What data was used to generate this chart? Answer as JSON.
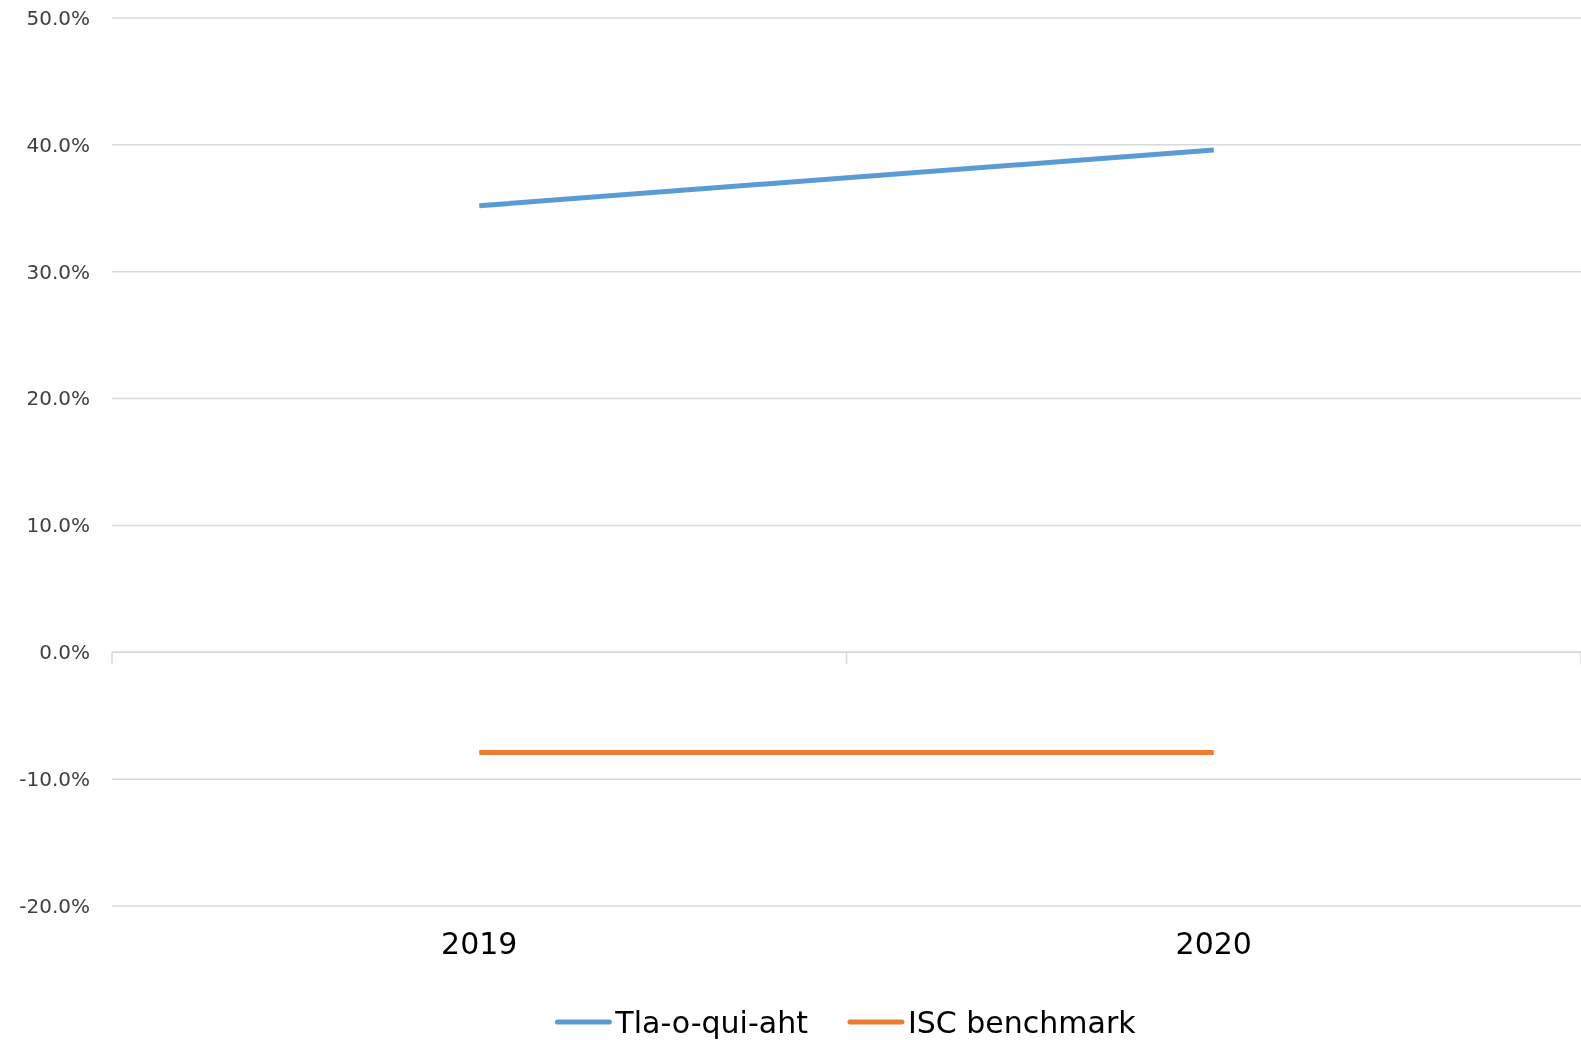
{
  "chart_data": {
    "type": "line",
    "categories": [
      "2019",
      "2020"
    ],
    "series": [
      {
        "name": "Tla-o-qui-aht",
        "color": "#5b9bd5",
        "values": [
          35.2,
          39.6
        ]
      },
      {
        "name": "ISC benchmark",
        "color": "#ed7d31",
        "values": [
          -7.9,
          -7.9
        ]
      }
    ],
    "ylim": [
      -20,
      50
    ],
    "yticks": [
      {
        "value": -20,
        "label": "-20.0%"
      },
      {
        "value": -10,
        "label": "-10.0%"
      },
      {
        "value": 0,
        "label": "0.0%"
      },
      {
        "value": 10,
        "label": "10.0%"
      },
      {
        "value": 20,
        "label": "20.0%"
      },
      {
        "value": 30,
        "label": "30.0%"
      },
      {
        "value": 40,
        "label": "40.0%"
      },
      {
        "value": 50,
        "label": "50.0%"
      }
    ],
    "grid": "y",
    "legend": "bottom",
    "marker": "none",
    "line_style": "solid"
  }
}
